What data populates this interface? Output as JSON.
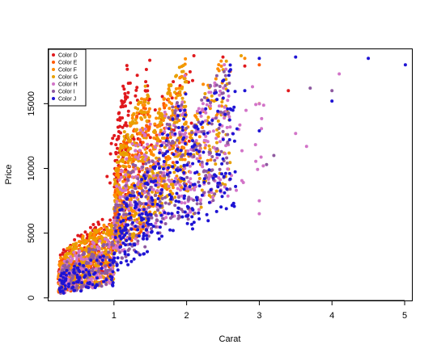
{
  "chart_data": {
    "type": "scatter",
    "title": "",
    "xlabel": "Carat",
    "ylabel": "Price",
    "xlim": [
      0.1,
      5.1
    ],
    "ylim": [
      -200,
      19200
    ],
    "xticks": [
      1,
      2,
      3,
      4,
      5
    ],
    "yticks": [
      0,
      5000,
      10000,
      15000
    ],
    "grid": false,
    "legend_position": "top-left",
    "series": [
      {
        "name": "Color D",
        "color": "#e0191d",
        "bands": [
          {
            "x": [
              0.23,
              1.0
            ],
            "y0": 350,
            "y1": 6500,
            "n": 160
          },
          {
            "x": [
              1.0,
              1.2
            ],
            "y0": 4000,
            "y1": 18500,
            "n": 120
          },
          {
            "x": [
              0.9,
              1.5
            ],
            "y0": 8000,
            "y1": 18700,
            "n": 60
          },
          {
            "x": [
              1.5,
              2.1
            ],
            "y0": 11000,
            "y1": 18700,
            "n": 25
          }
        ],
        "points": [
          [
            3.4,
            16000
          ],
          [
            2.5,
            18600
          ],
          [
            2.1,
            18700
          ],
          [
            2.8,
            17900
          ]
        ]
      },
      {
        "name": "Color E",
        "color": "#ff5a00",
        "bands": [
          {
            "x": [
              0.23,
              1.0
            ],
            "y0": 330,
            "y1": 6000,
            "n": 190
          },
          {
            "x": [
              1.0,
              1.5
            ],
            "y0": 3500,
            "y1": 16000,
            "n": 160
          },
          {
            "x": [
              1.5,
              2.0
            ],
            "y0": 7000,
            "y1": 18600,
            "n": 60
          }
        ],
        "points": [
          [
            2.6,
            17500
          ],
          [
            3.0,
            18000
          ]
        ]
      },
      {
        "name": "Color F",
        "color": "#ff8c00",
        "bands": [
          {
            "x": [
              0.23,
              1.0
            ],
            "y0": 340,
            "y1": 6000,
            "n": 190
          },
          {
            "x": [
              1.0,
              1.5
            ],
            "y0": 3500,
            "y1": 16500,
            "n": 170
          },
          {
            "x": [
              1.5,
              2.0
            ],
            "y0": 6500,
            "y1": 18700,
            "n": 130
          },
          {
            "x": [
              2.0,
              2.5
            ],
            "y0": 9000,
            "y1": 18700,
            "n": 40
          }
        ],
        "points": [
          [
            2.8,
            18500
          ],
          [
            3.0,
            15000
          ]
        ]
      },
      {
        "name": "Color G",
        "color": "#e8a000",
        "bands": [
          {
            "x": [
              0.25,
              1.0
            ],
            "y0": 360,
            "y1": 6000,
            "n": 170
          },
          {
            "x": [
              1.0,
              1.5
            ],
            "y0": 3500,
            "y1": 17000,
            "n": 160
          },
          {
            "x": [
              1.5,
              2.0
            ],
            "y0": 6000,
            "y1": 18700,
            "n": 130
          },
          {
            "x": [
              2.0,
              2.6
            ],
            "y0": 6500,
            "y1": 18700,
            "n": 70
          }
        ],
        "points": [
          [
            2.75,
            18700
          ],
          [
            2.2,
            7000
          ],
          [
            2.1,
            6500
          ]
        ]
      },
      {
        "name": "Color H",
        "color": "#d274c8",
        "bands": [
          {
            "x": [
              0.25,
              1.0
            ],
            "y0": 340,
            "y1": 5000,
            "n": 140
          },
          {
            "x": [
              1.0,
              1.5
            ],
            "y0": 3000,
            "y1": 14000,
            "n": 120
          },
          {
            "x": [
              1.5,
              2.0
            ],
            "y0": 5000,
            "y1": 17500,
            "n": 100
          },
          {
            "x": [
              2.0,
              2.6
            ],
            "y0": 6000,
            "y1": 18700,
            "n": 110
          },
          {
            "x": [
              2.6,
              3.1
            ],
            "y0": 8000,
            "y1": 18500,
            "n": 20
          }
        ],
        "points": [
          [
            3.5,
            12700
          ],
          [
            3.65,
            11700
          ],
          [
            3.0,
            7500
          ],
          [
            4.1,
            17300
          ],
          [
            3.0,
            6500
          ]
        ]
      },
      {
        "name": "Color I",
        "color": "#8e5aa0",
        "bands": [
          {
            "x": [
              0.25,
              1.0
            ],
            "y0": 340,
            "y1": 4500,
            "n": 110
          },
          {
            "x": [
              1.0,
              1.5
            ],
            "y0": 2500,
            "y1": 12000,
            "n": 90
          },
          {
            "x": [
              1.5,
              2.0
            ],
            "y0": 4500,
            "y1": 16500,
            "n": 80
          },
          {
            "x": [
              2.0,
              2.6
            ],
            "y0": 6000,
            "y1": 18700,
            "n": 90
          }
        ],
        "points": [
          [
            3.7,
            16200
          ],
          [
            4.0,
            16000
          ],
          [
            3.1,
            10300
          ],
          [
            3.2,
            11000
          ]
        ]
      },
      {
        "name": "Color J",
        "color": "#1f14d4",
        "bands": [
          {
            "x": [
              0.25,
              1.0
            ],
            "y0": 330,
            "y1": 3500,
            "n": 90
          },
          {
            "x": [
              1.0,
              1.5
            ],
            "y0": 2000,
            "y1": 10000,
            "n": 110
          },
          {
            "x": [
              1.5,
              2.0
            ],
            "y0": 4000,
            "y1": 16000,
            "n": 90
          },
          {
            "x": [
              2.0,
              2.7
            ],
            "y0": 5000,
            "y1": 18700,
            "n": 110
          }
        ],
        "points": [
          [
            3.0,
            18500
          ],
          [
            3.5,
            18600
          ],
          [
            4.5,
            18500
          ],
          [
            5.01,
            18000
          ],
          [
            4.0,
            15200
          ],
          [
            3.0,
            12900
          ],
          [
            2.6,
            14600
          ],
          [
            2.8,
            16000
          ]
        ]
      }
    ]
  }
}
